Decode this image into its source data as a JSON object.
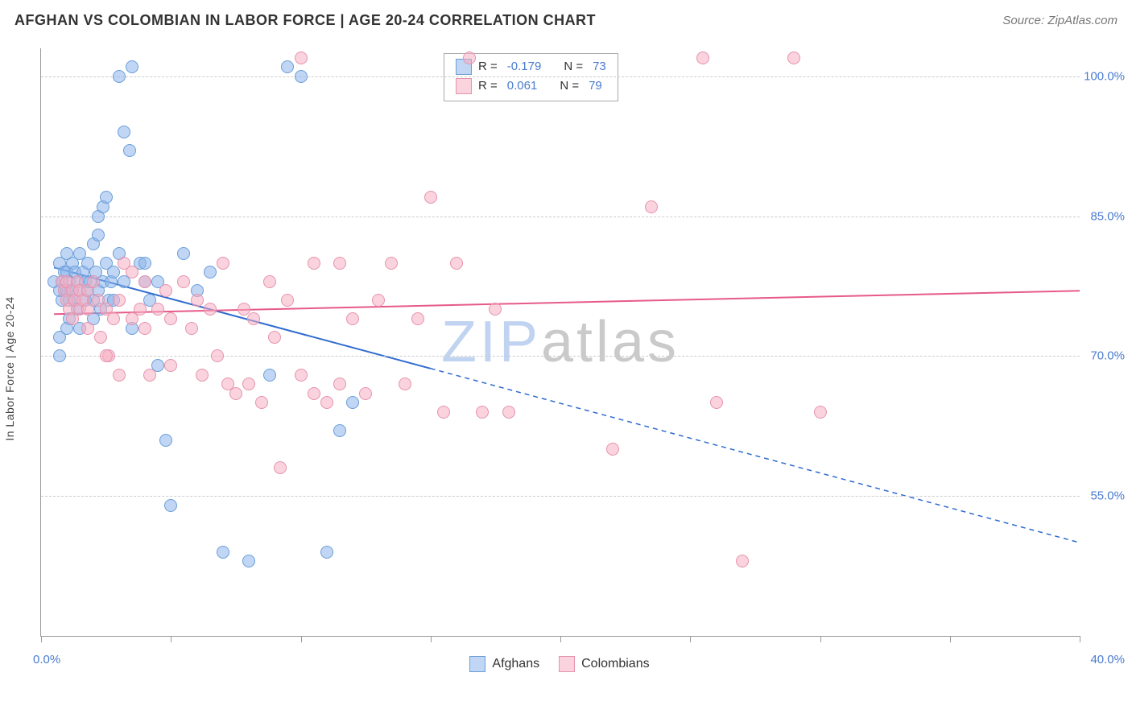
{
  "header": {
    "title": "AFGHAN VS COLOMBIAN IN LABOR FORCE | AGE 20-24 CORRELATION CHART",
    "source_prefix": "Source: ",
    "source": "ZipAtlas.com"
  },
  "chart": {
    "type": "scatter",
    "y_axis_title": "In Labor Force | Age 20-24",
    "watermark_zip": "ZIP",
    "watermark_rest": "atlas",
    "x_min": 0.0,
    "x_max": 40.0,
    "y_min": 40.0,
    "y_max": 103.0,
    "x_ticks": [
      0,
      5,
      10,
      15,
      20,
      25,
      30,
      35,
      40
    ],
    "x_tick_labels": {
      "left": "0.0%",
      "right": "40.0%"
    },
    "y_gridlines": [
      55.0,
      70.0,
      85.0,
      100.0
    ],
    "y_labels": [
      "55.0%",
      "70.0%",
      "85.0%",
      "100.0%"
    ],
    "background_color": "#ffffff",
    "grid_color": "#cccccc",
    "axis_color": "#999999",
    "label_color": "#4a7bd0",
    "point_radius": 8,
    "point_border_width": 1.5,
    "series": [
      {
        "name": "Afghans",
        "fill_color": "rgba(140,180,235,0.55)",
        "stroke_color": "#6a9ed8",
        "trend_color": "#2f6bd0",
        "trend_width": 2,
        "R": "-0.179",
        "N": "73",
        "trend": {
          "x1": 0.5,
          "y1": 79.5,
          "x2": 40.0,
          "y2": 50.0,
          "solid_until_x": 15.0
        },
        "points": [
          [
            0.5,
            78
          ],
          [
            0.7,
            77
          ],
          [
            0.7,
            80
          ],
          [
            0.8,
            76
          ],
          [
            0.8,
            78
          ],
          [
            0.9,
            77
          ],
          [
            0.9,
            79
          ],
          [
            1.0,
            77
          ],
          [
            1.0,
            79
          ],
          [
            1.0,
            81
          ],
          [
            1.1,
            76
          ],
          [
            1.1,
            78
          ],
          [
            1.1,
            74
          ],
          [
            1.2,
            80
          ],
          [
            1.2,
            77
          ],
          [
            1.3,
            79
          ],
          [
            1.3,
            76
          ],
          [
            1.4,
            75
          ],
          [
            1.4,
            78
          ],
          [
            1.5,
            81
          ],
          [
            1.5,
            77
          ],
          [
            1.6,
            79
          ],
          [
            1.7,
            78
          ],
          [
            1.7,
            76
          ],
          [
            1.8,
            80
          ],
          [
            1.8,
            77
          ],
          [
            1.9,
            78
          ],
          [
            2.0,
            76
          ],
          [
            2.0,
            82
          ],
          [
            2.1,
            79
          ],
          [
            2.2,
            77
          ],
          [
            2.3,
            75
          ],
          [
            2.4,
            78
          ],
          [
            2.5,
            80
          ],
          [
            2.6,
            76
          ],
          [
            2.7,
            78
          ],
          [
            2.8,
            79
          ],
          [
            0.7,
            72
          ],
          [
            0.7,
            70
          ],
          [
            1.0,
            73
          ],
          [
            1.5,
            73
          ],
          [
            2.0,
            74
          ],
          [
            2.2,
            85
          ],
          [
            2.2,
            83
          ],
          [
            2.4,
            86
          ],
          [
            2.5,
            87
          ],
          [
            3.0,
            81
          ],
          [
            3.0,
            100
          ],
          [
            3.2,
            94
          ],
          [
            3.4,
            92
          ],
          [
            3.5,
            101
          ],
          [
            3.8,
            80
          ],
          [
            4.0,
            78
          ],
          [
            4.2,
            76
          ],
          [
            4.5,
            69
          ],
          [
            4.8,
            61
          ],
          [
            5.0,
            54
          ],
          [
            5.5,
            81
          ],
          [
            6.0,
            77
          ],
          [
            6.5,
            79
          ],
          [
            8.8,
            68
          ],
          [
            9.5,
            101
          ],
          [
            10.0,
            100
          ],
          [
            7.0,
            49
          ],
          [
            8.0,
            48
          ],
          [
            11.0,
            49
          ],
          [
            11.5,
            62
          ],
          [
            12.0,
            65
          ],
          [
            2.8,
            76
          ],
          [
            3.5,
            73
          ],
          [
            4.0,
            80
          ],
          [
            4.5,
            78
          ],
          [
            3.2,
            78
          ]
        ]
      },
      {
        "name": "Colombians",
        "fill_color": "rgba(245,175,195,0.55)",
        "stroke_color": "#e693ad",
        "trend_color": "#e65a8a",
        "trend_width": 2,
        "R": "0.061",
        "N": "79",
        "trend": {
          "x1": 0.5,
          "y1": 74.5,
          "x2": 40.0,
          "y2": 77.0,
          "solid_until_x": 40.0
        },
        "points": [
          [
            0.8,
            78
          ],
          [
            0.9,
            77
          ],
          [
            1.0,
            76
          ],
          [
            1.0,
            78
          ],
          [
            1.1,
            75
          ],
          [
            1.2,
            77
          ],
          [
            1.3,
            76
          ],
          [
            1.4,
            78
          ],
          [
            1.5,
            77
          ],
          [
            1.5,
            75
          ],
          [
            1.6,
            76
          ],
          [
            1.8,
            77
          ],
          [
            1.8,
            75
          ],
          [
            2.0,
            78
          ],
          [
            2.2,
            76
          ],
          [
            2.3,
            72
          ],
          [
            2.5,
            75
          ],
          [
            2.6,
            70
          ],
          [
            2.8,
            74
          ],
          [
            3.0,
            76
          ],
          [
            3.0,
            68
          ],
          [
            3.2,
            80
          ],
          [
            3.5,
            74
          ],
          [
            3.5,
            79
          ],
          [
            3.8,
            75
          ],
          [
            4.0,
            78
          ],
          [
            4.0,
            73
          ],
          [
            4.2,
            68
          ],
          [
            4.5,
            75
          ],
          [
            4.8,
            77
          ],
          [
            5.0,
            74
          ],
          [
            5.0,
            69
          ],
          [
            5.5,
            78
          ],
          [
            5.8,
            73
          ],
          [
            6.0,
            76
          ],
          [
            6.2,
            68
          ],
          [
            6.5,
            75
          ],
          [
            6.8,
            70
          ],
          [
            7.0,
            80
          ],
          [
            7.2,
            67
          ],
          [
            7.5,
            66
          ],
          [
            7.8,
            75
          ],
          [
            8.0,
            67
          ],
          [
            8.2,
            74
          ],
          [
            8.5,
            65
          ],
          [
            8.8,
            78
          ],
          [
            9.0,
            72
          ],
          [
            9.2,
            58
          ],
          [
            9.5,
            76
          ],
          [
            10.0,
            68
          ],
          [
            10.0,
            102
          ],
          [
            10.5,
            66
          ],
          [
            10.5,
            80
          ],
          [
            11.0,
            65
          ],
          [
            11.5,
            67
          ],
          [
            11.5,
            80
          ],
          [
            12.0,
            74
          ],
          [
            12.5,
            66
          ],
          [
            13.0,
            76
          ],
          [
            13.5,
            80
          ],
          [
            14.0,
            67
          ],
          [
            14.5,
            74
          ],
          [
            15.0,
            87
          ],
          [
            15.5,
            64
          ],
          [
            16.0,
            80
          ],
          [
            16.5,
            102
          ],
          [
            17.0,
            64
          ],
          [
            17.5,
            75
          ],
          [
            18.0,
            64
          ],
          [
            22.0,
            60
          ],
          [
            23.5,
            86
          ],
          [
            25.5,
            102
          ],
          [
            26.0,
            65
          ],
          [
            27.0,
            48
          ],
          [
            29.0,
            102
          ],
          [
            30.0,
            64
          ],
          [
            1.2,
            74
          ],
          [
            1.8,
            73
          ],
          [
            2.5,
            70
          ]
        ]
      }
    ],
    "corr_box": {
      "row1": {
        "label_r": "R =",
        "label_n": "N ="
      },
      "row2": {
        "label_r": "R =",
        "label_n": "N ="
      }
    },
    "bottom_legend": {
      "a": "Afghans",
      "b": "Colombians"
    }
  }
}
